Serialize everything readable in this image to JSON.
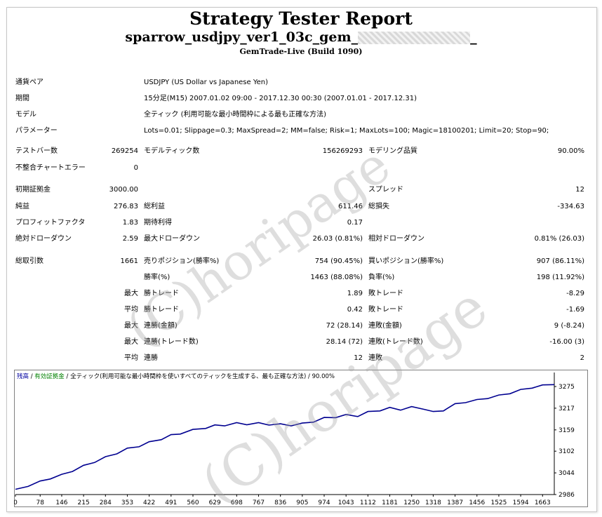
{
  "header": {
    "title": "Strategy Tester Report",
    "subtitle_prefix": "sparrow_usdjpy_ver1_03c_gem_",
    "subtitle_suffix": "_",
    "server": "GemTrade-Live (Build 1090)"
  },
  "info": {
    "symbol_label": "通貨ペア",
    "symbol_value": "USDJPY (US Dollar vs Japanese Yen)",
    "period_label": "期間",
    "period_value": "15分足(M15) 2007.01.02 09:00 - 2017.12.30 00:30 (2007.01.01 - 2017.12.31)",
    "model_label": "モデル",
    "model_value": "全ティック (利用可能な最小時間枠による最も正確な方法)",
    "params_label": "パラメーター",
    "params_value": "Lots=0.01; Slippage=0.3; MaxSpread=2; MM=false; Risk=1; MaxLots=100; Magic=18100201; Limit=20; Stop=90;"
  },
  "stats": {
    "bars_label": "テストバー数",
    "bars": "269254",
    "ticks_label": "モデルティック数",
    "ticks": "156269293",
    "quality_label": "モデリング品質",
    "quality": "90.00%",
    "mismatch_label": "不整合チャートエラー",
    "mismatch": "0",
    "deposit_label": "初期証拠金",
    "deposit": "3000.00",
    "spread_label": "スプレッド",
    "spread": "12",
    "net_label": "純益",
    "net": "276.83",
    "gross_profit_label": "総利益",
    "gross_profit": "611.46",
    "gross_loss_label": "総損失",
    "gross_loss": "-334.63",
    "pf_label": "プロフィットファクタ",
    "pf": "1.83",
    "payoff_label": "期待利得",
    "payoff": "0.17",
    "abs_dd_label": "絶対ドローダウン",
    "abs_dd": "2.59",
    "max_dd_label": "最大ドローダウン",
    "max_dd": "26.03 (0.81%)",
    "rel_dd_label": "相対ドローダウン",
    "rel_dd": "0.81% (26.03)",
    "trades_label": "総取引数",
    "trades": "1661",
    "short_label": "売りポジション(勝率%)",
    "short": "754 (90.45%)",
    "long_label": "買いポジション(勝率%)",
    "long": "907 (86.11%)",
    "win_rate_label": "勝率(%)",
    "win_rate": "1463 (88.08%)",
    "loss_rate_label": "負率(%)",
    "loss_rate": "198 (11.92%)",
    "max_word": "最大",
    "avg_word": "平均",
    "win_trade_label": "勝トレード",
    "loss_trade_label": "敗トレード",
    "max_win": "1.89",
    "max_loss": "-8.29",
    "avg_win": "0.42",
    "avg_loss": "-1.69",
    "cons_win_money_label": "連勝(金額)",
    "cons_win_money": "72 (28.14)",
    "cons_loss_money_label": "連敗(金額)",
    "cons_loss_money": "9 (-8.24)",
    "cons_win_trades_label": "連勝(トレード数)",
    "cons_win_trades": "28.14 (72)",
    "cons_loss_trades_label": "連敗(トレード数)",
    "cons_loss_trades": "-16.00 (3)",
    "avg_cons_win_label": "連勝",
    "avg_cons_win": "12",
    "avg_cons_loss_label": "連敗",
    "avg_cons_loss": "2"
  },
  "watermark": "(C)horipage",
  "chart_data": {
    "type": "line",
    "legend": {
      "balance": "残高",
      "sep1": " / ",
      "equity": "有効証拠金",
      "sep2": " / ",
      "model": "全ティック(利用可能な最小時間枠を使いすべてのティックを生成する、最も正確な方法)",
      "sep3": " / ",
      "quality": "90.00%"
    },
    "legend_colors": {
      "balance": "#0000a0",
      "equity": "#008000",
      "text": "#000000"
    },
    "line_color": "#000090",
    "xticks": [
      0,
      78,
      146,
      215,
      284,
      353,
      422,
      491,
      560,
      629,
      698,
      767,
      836,
      905,
      974,
      1043,
      1112,
      1181,
      1250,
      1318,
      1387,
      1456,
      1525,
      1594,
      1663
    ],
    "yticks": [
      2986,
      3044,
      3102,
      3159,
      3217,
      3275
    ],
    "xlim": [
      0,
      1700
    ],
    "ylim": [
      2986,
      3290
    ],
    "series": [
      {
        "x": [
          0,
          40,
          78,
          110,
          146,
          180,
          215,
          250,
          284,
          320,
          353,
          390,
          422,
          460,
          491,
          520,
          560,
          600,
          629,
          660,
          698,
          730,
          767,
          800,
          836,
          870,
          905,
          940,
          974,
          1010,
          1043,
          1080,
          1112,
          1150,
          1181,
          1215,
          1250,
          1290,
          1318,
          1350,
          1387,
          1420,
          1456,
          1490,
          1525,
          1560,
          1594,
          1630,
          1663,
          1700
        ],
        "values": [
          3000,
          3010,
          3020,
          3030,
          3038,
          3050,
          3062,
          3074,
          3085,
          3097,
          3108,
          3116,
          3125,
          3135,
          3144,
          3150,
          3158,
          3165,
          3170,
          3172,
          3176,
          3175,
          3176,
          3174,
          3173,
          3172,
          3175,
          3182,
          3190,
          3194,
          3198,
          3197,
          3206,
          3212,
          3217,
          3214,
          3219,
          3216,
          3206,
          3212,
          3227,
          3234,
          3238,
          3245,
          3250,
          3258,
          3265,
          3273,
          3277,
          3280
        ]
      }
    ]
  }
}
